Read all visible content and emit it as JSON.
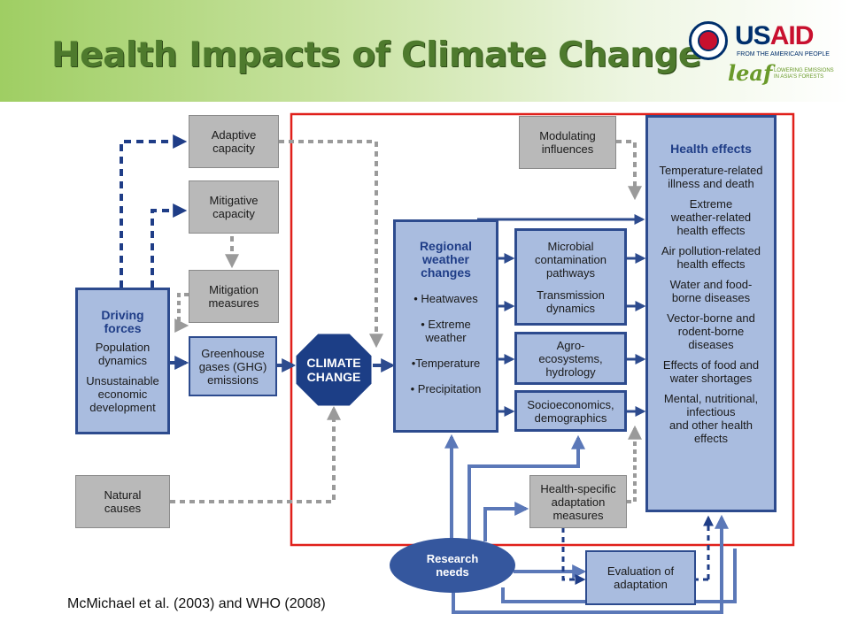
{
  "slide": {
    "title": "Health Impacts of Climate Change",
    "citation": "McMichael et al. (2003) and WHO (2008)"
  },
  "logo": {
    "usaid": "USAID",
    "usaid_tagline": "FROM THE AMERICAN PEOPLE",
    "leaf": "leaf",
    "leaf_tagline_1": "LOWERING EMISSIONS",
    "leaf_tagline_2": "IN ASIA'S FORESTS"
  },
  "diagram": {
    "adaptive_capacity": [
      "Adaptive",
      "capacity"
    ],
    "mitigative_capacity": [
      "Mitigative",
      "capacity"
    ],
    "mitigation_measures": [
      "Mitigation",
      "measures"
    ],
    "ghg_emissions": [
      "Greenhouse",
      "gases (GHG)",
      "emissions"
    ],
    "natural_causes": [
      "Natural",
      "causes"
    ],
    "modulating_influences": [
      "Modulating",
      "influences"
    ],
    "driving_forces": {
      "heading": [
        "Driving",
        "forces"
      ],
      "items": [
        "Population",
        "dynamics",
        "",
        "Unsustainable",
        "economic",
        "development"
      ]
    },
    "climate_change": [
      "CLIMATE",
      "CHANGE"
    ],
    "regional_weather": {
      "heading": [
        "Regional",
        "weather",
        "changes"
      ],
      "items": [
        "• Heatwaves",
        "• Extreme",
        "weather",
        "•Temperature",
        "• Precipitation"
      ]
    },
    "pathways": {
      "microbial": [
        "Microbial",
        "contamination",
        "pathways",
        "",
        "Transmission",
        "dynamics"
      ],
      "agro": [
        "Agro-",
        "ecosystems,",
        "hydrology"
      ],
      "socio": [
        "Socioeconomics,",
        "demographics"
      ]
    },
    "health_specific": [
      "Health-specific",
      "adaptation",
      "measures"
    ],
    "evaluation": [
      "Evaluation of",
      "adaptation"
    ],
    "research_needs": [
      "Research",
      "needs"
    ],
    "health_effects": {
      "heading": "Health effects",
      "items": [
        [
          "Temperature-related",
          "illness and death"
        ],
        [
          "Extreme",
          "weather-related",
          "health effects"
        ],
        [
          "Air pollution-related",
          "health effects"
        ],
        [
          "Water and food-",
          "borne diseases"
        ],
        [
          "Vector-borne and",
          "rodent-borne",
          "diseases"
        ],
        [
          "Effects of food and",
          "water shortages"
        ],
        [
          "Mental, nutritional,",
          "infectious",
          "and other health",
          "effects"
        ]
      ]
    },
    "colors": {
      "grey_box": "#b9b9b9",
      "blue_box": "#a9bcdf",
      "blue_dark": "#2d4b8e",
      "highlight_frame": "#e0201b",
      "title_green": "#4e7a2d"
    }
  }
}
